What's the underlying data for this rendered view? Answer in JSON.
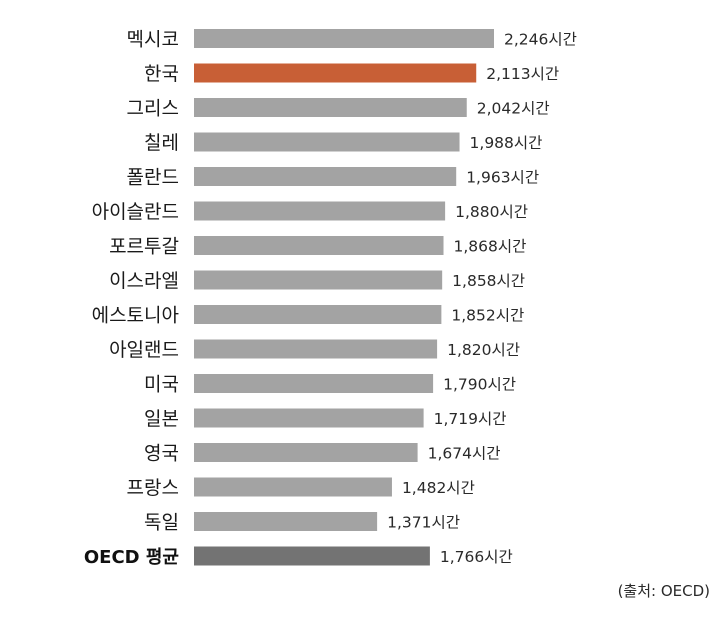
{
  "chart_data": {
    "type": "bar",
    "orientation": "horizontal",
    "unit_suffix": "시간",
    "categories": [
      "멕시코",
      "한국",
      "그리스",
      "칠레",
      "폴란드",
      "아이슬란드",
      "포르투갈",
      "이스라엘",
      "에스토니아",
      "아일랜드",
      "미국",
      "일본",
      "영국",
      "프랑스",
      "독일",
      "OECD 평균"
    ],
    "values": [
      2246,
      2113,
      2042,
      1988,
      1963,
      1880,
      1868,
      1858,
      1852,
      1820,
      1790,
      1719,
      1674,
      1482,
      1371,
      1766
    ],
    "value_labels": [
      "2,246시간",
      "2,113시간",
      "2,042시간",
      "1,988시간",
      "1,963시간",
      "1,880시간",
      "1,868시간",
      "1,858시간",
      "1,852시간",
      "1,820시간",
      "1,790시간",
      "1,719시간",
      "1,674시간",
      "1,482시간",
      "1,371시간",
      "1,766시간"
    ],
    "bar_colors": [
      "#a3a3a3",
      "#c85f36",
      "#a3a3a3",
      "#a3a3a3",
      "#a3a3a3",
      "#a3a3a3",
      "#a3a3a3",
      "#a3a3a3",
      "#a3a3a3",
      "#a3a3a3",
      "#a3a3a3",
      "#a3a3a3",
      "#a3a3a3",
      "#a3a3a3",
      "#a3a3a3",
      "#737373"
    ],
    "highlight_category": "한국",
    "average_category": "OECD 평균",
    "xlim": [
      0,
      2246
    ],
    "grid": false,
    "source": "(출처: OECD)"
  }
}
